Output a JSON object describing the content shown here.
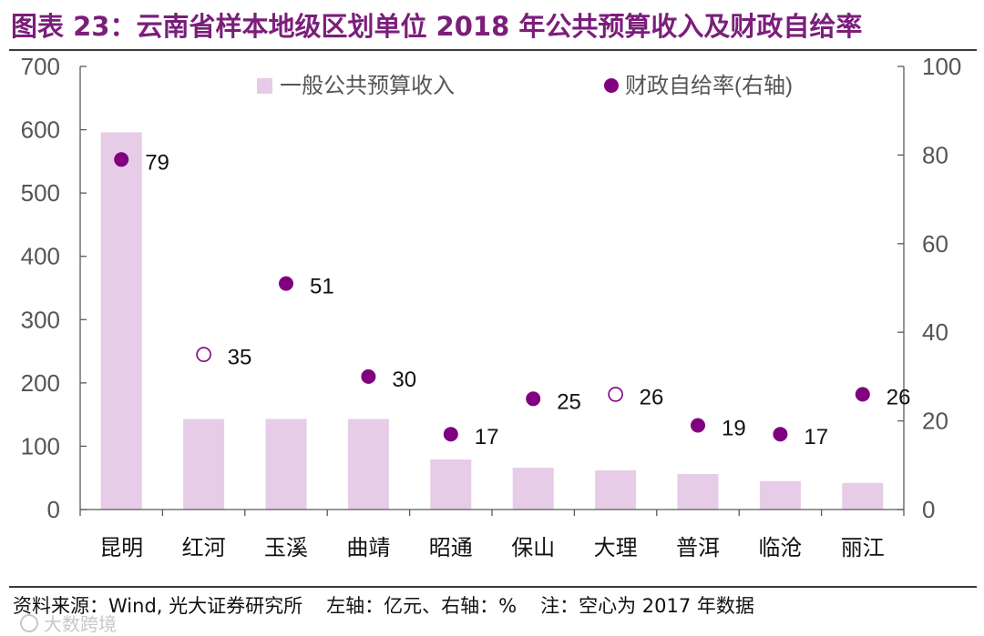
{
  "title": "图表 23：云南省样本地级区划单位 2018 年公共预算收入及财政自给率",
  "footer": {
    "source": "资料来源：Wind, 光大证券研究所",
    "axis_note": "左轴：亿元、右轴：%",
    "note": "注：空心为 2017 年数据"
  },
  "watermark": "大数跨境",
  "colors": {
    "bar": "#e6cce6",
    "dot": "#800080",
    "title": "#7b1e7b",
    "axis": "#595959",
    "text": "#111111"
  },
  "chart_data": {
    "type": "bar",
    "categories": [
      "昆明",
      "红河",
      "玉溪",
      "曲靖",
      "昭通",
      "保山",
      "大理",
      "普洱",
      "临沧",
      "丽江"
    ],
    "series": [
      {
        "name": "一般公共预算收入",
        "type": "bar",
        "axis": "left",
        "values": [
          596,
          143,
          143,
          143,
          79,
          66,
          62,
          56,
          45,
          42
        ]
      },
      {
        "name": "财政自给率(右轴)",
        "type": "scatter",
        "axis": "right",
        "values": [
          79,
          35,
          51,
          30,
          17,
          25,
          26,
          19,
          17,
          26
        ],
        "labels": [
          "79",
          "35",
          "51",
          "30",
          "17",
          "25",
          "26",
          "19",
          "17",
          "26"
        ],
        "hollow": [
          false,
          true,
          false,
          false,
          false,
          false,
          true,
          false,
          false,
          false
        ]
      }
    ],
    "y_left": {
      "lim": [
        0,
        700
      ],
      "ticks": [
        0,
        100,
        200,
        300,
        400,
        500,
        600,
        700
      ],
      "tick_labels": [
        "0",
        "100",
        "200",
        "300",
        "400",
        "500",
        "600",
        "700"
      ]
    },
    "y_right": {
      "lim": [
        0,
        100
      ],
      "ticks": [
        0,
        20,
        40,
        60,
        80,
        100
      ],
      "tick_labels": [
        "0",
        "20",
        "40",
        "60",
        "80",
        "100"
      ]
    },
    "legend": [
      "一般公共预算收入",
      "财政自给率(右轴)"
    ],
    "legend_position": "top",
    "grid": false
  }
}
